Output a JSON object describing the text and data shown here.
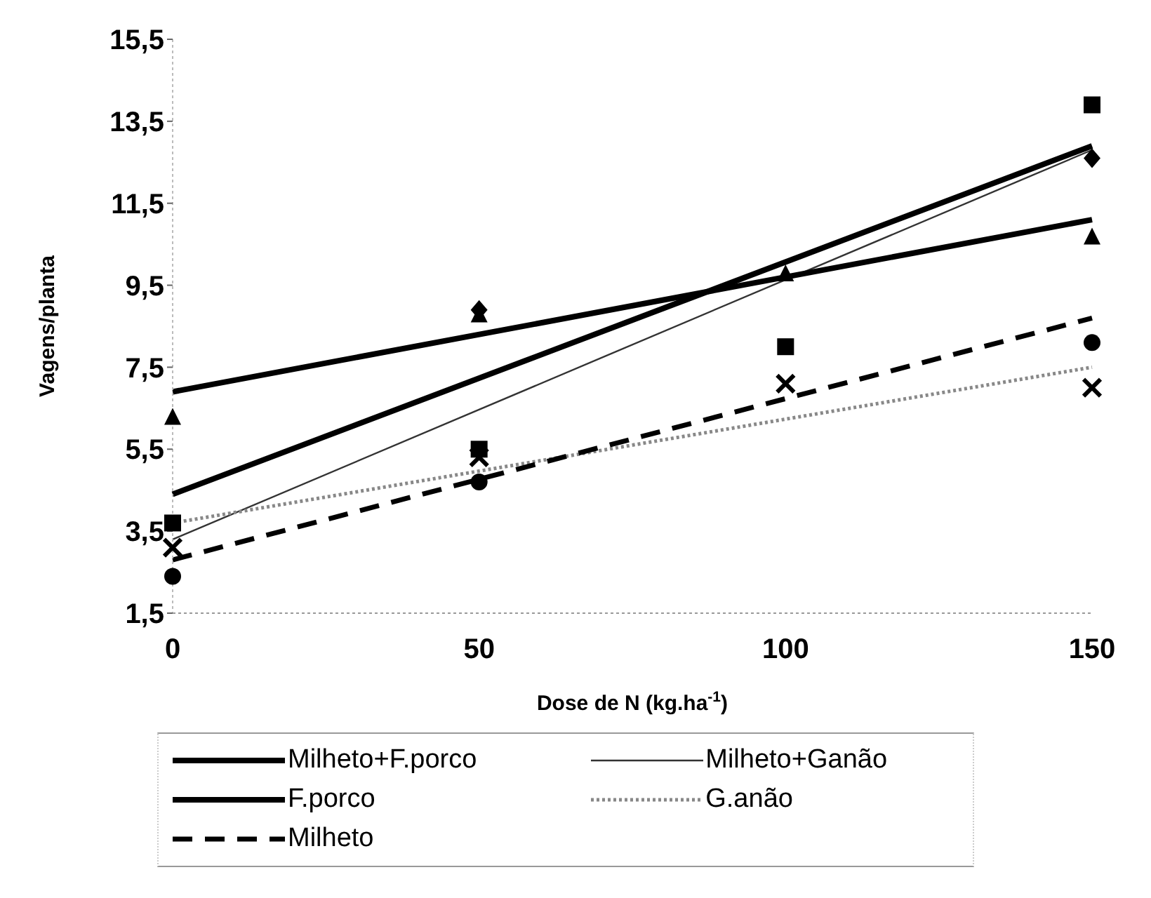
{
  "chart_data": {
    "type": "line",
    "xlabel": "Dose de N (kg.ha$^{-1}$)",
    "ylabel": "Vagens/planta",
    "xlim": [
      0,
      150
    ],
    "xticks": [
      0,
      50,
      100,
      150
    ],
    "ylim": [
      1.5,
      15.5
    ],
    "yticks": [
      {
        "value": 1.5,
        "label": "1,5"
      },
      {
        "value": 3.5,
        "label": "3,5"
      },
      {
        "value": 5.5,
        "label": "5,5"
      },
      {
        "value": 7.5,
        "label": "7,5"
      },
      {
        "value": 9.5,
        "label": "9,5"
      },
      {
        "value": 11.5,
        "label": "11,5"
      },
      {
        "value": 13.5,
        "label": "13,5"
      },
      {
        "value": 15.5,
        "label": "15,5"
      }
    ],
    "grid": false,
    "legend": "bottom",
    "series": [
      {
        "name": "Milheto+F.porco",
        "color": "#000000",
        "line_style": "solid",
        "marker": "none",
        "x": [
          0,
          150
        ],
        "values": [
          4.4,
          12.9
        ]
      },
      {
        "name": "Milheto+Ganão",
        "color": "#333333",
        "line_style": "solid",
        "marker": "none",
        "x": [
          0,
          150
        ],
        "values": [
          3.3,
          12.8
        ]
      },
      {
        "name": "F.porco",
        "color": "#000000",
        "line_style": "solid",
        "marker": "none",
        "x": [
          0,
          150
        ],
        "values": [
          6.9,
          11.1
        ]
      },
      {
        "name": "G.anão",
        "color": "#888888",
        "line_style": "dotted",
        "marker": "none",
        "x": [
          0,
          150
        ],
        "values": [
          3.7,
          7.5
        ]
      },
      {
        "name": "Milheto",
        "color": "#000000",
        "line_style": "dashed",
        "marker": "none",
        "x": [
          0,
          150
        ],
        "values": [
          2.8,
          8.7
        ]
      },
      {
        "type": "scatter",
        "color": "#000000",
        "marker": "diamond",
        "x": [
          50,
          150
        ],
        "values": [
          8.9,
          12.6
        ]
      },
      {
        "type": "scatter",
        "color": "#000000",
        "marker": "square",
        "x": [
          0,
          50,
          100,
          150
        ],
        "values": [
          3.7,
          5.5,
          8.0,
          13.9
        ]
      },
      {
        "type": "scatter",
        "color": "#000000",
        "marker": "triangle",
        "x": [
          0,
          50,
          100,
          150
        ],
        "values": [
          6.3,
          8.8,
          9.8,
          10.7
        ]
      },
      {
        "type": "scatter",
        "color": "#000000",
        "marker": "cross",
        "x": [
          0,
          50,
          100,
          150
        ],
        "values": [
          3.1,
          5.3,
          7.1,
          7.0
        ]
      },
      {
        "type": "scatter",
        "color": "#000000",
        "marker": "circle",
        "x": [
          0,
          50,
          150
        ],
        "values": [
          2.4,
          4.7,
          8.1
        ]
      }
    ]
  }
}
